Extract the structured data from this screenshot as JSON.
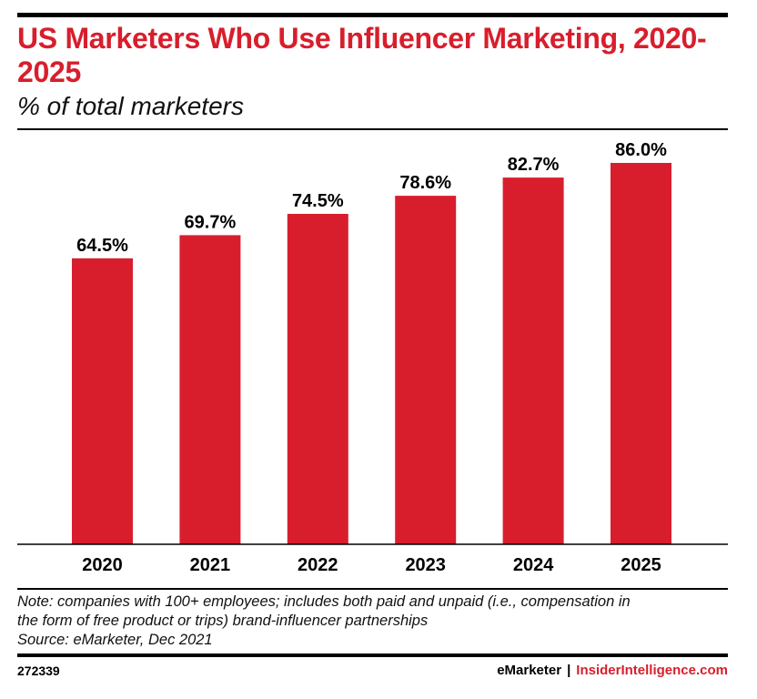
{
  "header": {
    "title": "US Marketers Who Use Influencer Marketing, 2020-2025",
    "subtitle": "% of total marketers"
  },
  "chart_data": {
    "type": "bar",
    "title": "US Marketers Who Use Influencer Marketing, 2020-2025",
    "subtitle": "% of total marketers",
    "categories": [
      "2020",
      "2021",
      "2022",
      "2023",
      "2024",
      "2025"
    ],
    "values": [
      64.5,
      69.7,
      74.5,
      78.6,
      82.7,
      86.0
    ],
    "value_labels": [
      "64.5%",
      "69.7%",
      "74.5%",
      "78.6%",
      "82.7%",
      "86.0%"
    ],
    "xlabel": "",
    "ylabel": "",
    "ylim": [
      0,
      100
    ],
    "grid": false,
    "legend": "none",
    "bar_color": "#d81e2c"
  },
  "footnote": {
    "note_line1": "Note: companies with 100+ employees; includes both paid and unpaid (i.e., compensation in",
    "note_line2": "the form of free product or trips) brand-influencer partnerships",
    "source": "Source: eMarketer, Dec 2021"
  },
  "footer": {
    "chart_id": "272339",
    "brand_primary": "eMarketer",
    "brand_separator": "|",
    "brand_secondary": "InsiderIntelligence.com"
  },
  "colors": {
    "accent": "#d81e2c",
    "text": "#000000"
  }
}
